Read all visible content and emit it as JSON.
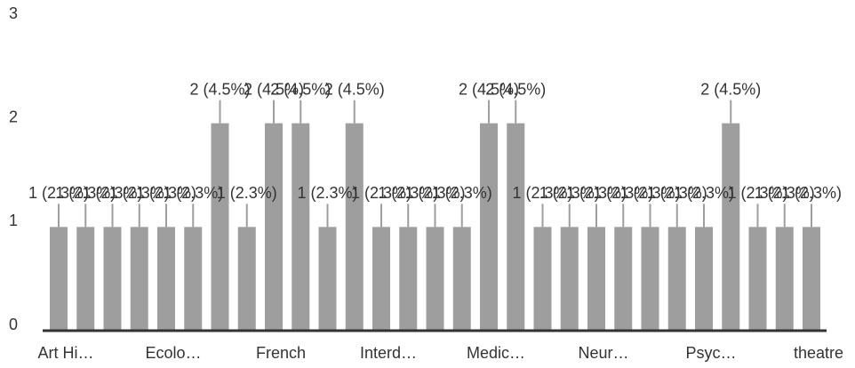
{
  "chart_data": {
    "type": "bar",
    "categories": [
      "Art Hi…",
      null,
      null,
      null,
      "Ecolo…",
      null,
      null,
      null,
      "French",
      null,
      null,
      null,
      "Interd…",
      null,
      null,
      null,
      "Medic…",
      null,
      null,
      null,
      "Neur…",
      null,
      null,
      null,
      "Psyc…",
      null,
      null,
      null,
      "theatre"
    ],
    "values": [
      1,
      1,
      1,
      1,
      1,
      1,
      2,
      1,
      2,
      2,
      1,
      2,
      1,
      1,
      1,
      1,
      2,
      2,
      1,
      1,
      1,
      1,
      1,
      1,
      1,
      2,
      1,
      1,
      1
    ],
    "value_labels": [
      "1 (2.3%)",
      "1 (2.3%)",
      "1 (2.3%)",
      "1 (2.3%)",
      "1 (2.3%)",
      "1 (2.3%)",
      "2 (4.5%)",
      "1 (2.3%)",
      "2 (4.5%)",
      "2 (4.5%)",
      "1 (2.3%)",
      "2 (4.5%)",
      "1 (2.3%)",
      "1 (2.3%)",
      "1 (2.3%)",
      "1 (2.3%)",
      "2 (4.5%)",
      "2 (4.5%)",
      "1 (2.3%)",
      "1 (2.3%)",
      "1 (2.3%)",
      "1 (2.3%)",
      "1 (2.3%)",
      "1 (2.3%)",
      "1 (2.3%)",
      "2 (4.5%)",
      "1 (2.3%)",
      "1 (2.3%)",
      "1 (2.3%)"
    ],
    "color": "#9e9e9e",
    "ylim": [
      0,
      3
    ],
    "yticks": [
      0,
      1,
      2,
      3
    ]
  }
}
